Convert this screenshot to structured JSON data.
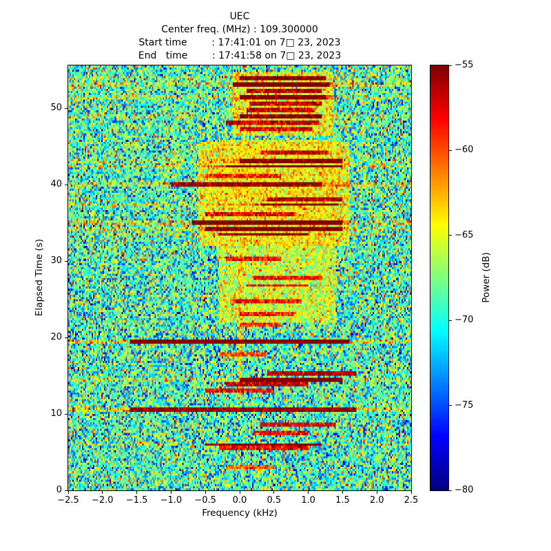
{
  "chart_data": {
    "type": "heatmap",
    "colormap": "jet",
    "title": "UEC",
    "subtitle_lines": [
      "Center freq. (MHz) : 109.300000",
      "Start time        : 17:41:01 on 7□ 23, 2023",
      "End   time        : 17:41:58 on 7□ 23, 2023"
    ],
    "xlabel": "Frequency (kHz)",
    "ylabel": "Elapsed Time (s)",
    "xlim": [
      -2.5,
      2.5
    ],
    "ylim": [
      0,
      55.6
    ],
    "xticks": {
      "values": [
        -2.5,
        -2.0,
        -1.5,
        -1.0,
        -0.5,
        0.0,
        0.5,
        1.0,
        1.5,
        2.0,
        2.5
      ],
      "labels": [
        "−2.5",
        "−2.0",
        "−1.5",
        "−1.0",
        "−0.5",
        "0.0",
        "0.5",
        "1.0",
        "1.5",
        "2.0",
        "2.5"
      ]
    },
    "yticks": {
      "values": [
        0,
        10,
        20,
        30,
        40,
        50
      ],
      "labels": [
        "0",
        "10",
        "20",
        "30",
        "40",
        "50"
      ]
    },
    "colorbar": {
      "label": "Power (dB)",
      "vmin": -80,
      "vmax": -55,
      "tick_values": [
        -55,
        -60,
        -65,
        -70,
        -75,
        -80
      ],
      "tick_labels": [
        "−55",
        "−60",
        "−65",
        "−70",
        "−75",
        "−80"
      ]
    },
    "noise": {
      "floor_db": -69,
      "std_db": 4.2,
      "seed": 42
    },
    "signal_bands": [
      {
        "t": 54.0,
        "f": [
          0.0,
          1.25
        ],
        "p": -56,
        "row": 2
      },
      {
        "t": 53.2,
        "f": [
          -0.1,
          1.3
        ],
        "p": -55.5,
        "row": 3
      },
      {
        "t": 52.3,
        "f": [
          0.1,
          1.2
        ],
        "p": -56
      },
      {
        "t": 51.5,
        "f": [
          0.0,
          1.25
        ],
        "p": -55.5,
        "row": 2
      },
      {
        "t": 50.6,
        "f": [
          0.15,
          1.2
        ],
        "p": -56.5
      },
      {
        "t": 49.8,
        "f": [
          0.1,
          1.1
        ],
        "p": -57
      },
      {
        "t": 48.9,
        "f": [
          0.0,
          1.2
        ],
        "p": -56,
        "row": 2
      },
      {
        "t": 48.1,
        "f": [
          -0.2,
          1.15
        ],
        "p": -57
      },
      {
        "t": 47.2,
        "f": [
          0.0,
          1.05
        ],
        "p": -57.5
      },
      {
        "t": 44.1,
        "f": [
          0.3,
          1.3
        ],
        "p": -57
      },
      {
        "t": 43.2,
        "f": [
          0.0,
          1.5
        ],
        "p": -56,
        "row": 2
      },
      {
        "t": 42.4,
        "f": [
          -0.2,
          1.5
        ],
        "p": -55.5,
        "row": 3
      },
      {
        "t": 41.2,
        "f": [
          -0.5,
          0.6
        ],
        "p": -58.5
      },
      {
        "t": 40.0,
        "f": [
          -1.0,
          1.2
        ],
        "p": -58,
        "row": 3
      },
      {
        "t": 38.0,
        "f": [
          0.4,
          1.5
        ],
        "p": -56
      },
      {
        "t": 37.4,
        "f": [
          0.3,
          1.45
        ],
        "p": -56,
        "row": 2
      },
      {
        "t": 36.2,
        "f": [
          -0.5,
          0.8
        ],
        "p": -58
      },
      {
        "t": 35.0,
        "f": [
          -0.7,
          1.5
        ],
        "p": -56,
        "row": 4
      },
      {
        "t": 34.2,
        "f": [
          -0.5,
          1.5
        ],
        "p": -56,
        "row": 3
      },
      {
        "t": 33.5,
        "f": [
          -0.3,
          1.0
        ],
        "p": -56.5,
        "row": 2
      },
      {
        "t": 30.2,
        "f": [
          -0.2,
          0.6
        ],
        "p": -58.5
      },
      {
        "t": 27.7,
        "f": [
          0.2,
          1.2
        ],
        "p": -58
      },
      {
        "t": 26.8,
        "f": [
          0.1,
          1.0
        ],
        "p": -58.5
      },
      {
        "t": 24.8,
        "f": [
          -0.1,
          0.9
        ],
        "p": -58.5
      },
      {
        "t": 23.0,
        "f": [
          0.0,
          0.8
        ],
        "p": -59
      },
      {
        "t": 21.6,
        "f": [
          0.0,
          0.6
        ],
        "p": -59.5
      },
      {
        "t": 19.5,
        "f": [
          -1.6,
          1.6
        ],
        "p": -57,
        "row": 4
      },
      {
        "t": 17.9,
        "f": [
          -0.3,
          0.4
        ],
        "p": -60
      },
      {
        "t": 15.2,
        "f": [
          0.4,
          1.7
        ],
        "p": -56
      },
      {
        "t": 14.4,
        "f": [
          0.0,
          1.5
        ],
        "p": -55.5,
        "row": 3
      },
      {
        "t": 13.9,
        "f": [
          -0.2,
          1.0
        ],
        "p": -56.5
      },
      {
        "t": 13.1,
        "f": [
          -0.5,
          0.5
        ],
        "p": -58
      },
      {
        "t": 10.5,
        "f": [
          -1.6,
          1.7
        ],
        "p": -59,
        "row": 4
      },
      {
        "t": 8.6,
        "f": [
          0.3,
          1.4
        ],
        "p": -57.5
      },
      {
        "t": 7.6,
        "f": [
          0.2,
          1.0
        ],
        "p": -58
      },
      {
        "t": 6.0,
        "f": [
          -0.5,
          1.2
        ],
        "p": -56.5,
        "row": 2
      },
      {
        "t": 5.6,
        "f": [
          -0.3,
          1.0
        ],
        "p": -58
      },
      {
        "t": 3.1,
        "f": [
          -0.2,
          0.5
        ],
        "p": -60.5
      }
    ],
    "elevated_regions": [
      {
        "tr": [
          22,
          46
        ],
        "f": [
          -0.3,
          1.4
        ],
        "p": -66.5
      },
      {
        "tr": [
          32,
          45.5
        ],
        "f": [
          -0.6,
          1.6
        ],
        "p": -65
      },
      {
        "tr": [
          46.5,
          54.8
        ],
        "f": [
          -0.1,
          1.35
        ],
        "p": -65
      },
      {
        "tr": [
          12,
          31
        ],
        "f": [
          -0.02,
          0.04
        ],
        "p": -64
      }
    ]
  }
}
